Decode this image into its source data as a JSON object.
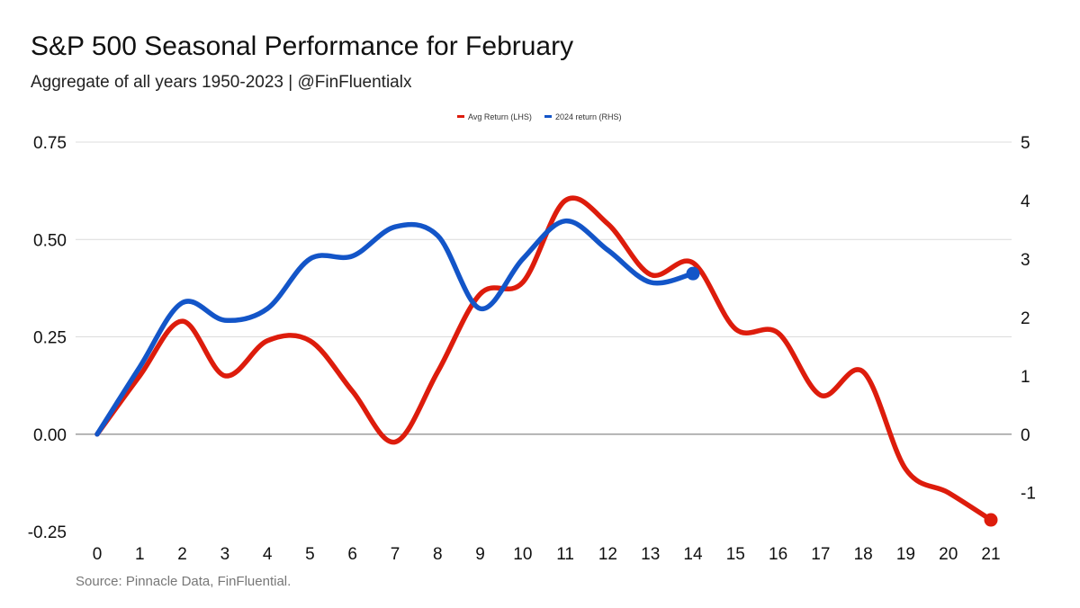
{
  "chart_data": {
    "type": "line",
    "title": "S&P 500 Seasonal Performance for February",
    "subtitle": "Aggregate of all years 1950-2023 | @FinFluentialx",
    "source": "Source: Pinnacle Data, FinFluential.",
    "x": [
      0,
      1,
      2,
      3,
      4,
      5,
      6,
      7,
      8,
      9,
      10,
      11,
      12,
      13,
      14,
      15,
      16,
      17,
      18,
      19,
      20,
      21
    ],
    "x_tick_labels": [
      "0",
      "1",
      "2",
      "3",
      "4",
      "5",
      "6",
      "7",
      "8",
      "9",
      "10",
      "11",
      "12",
      "13",
      "14",
      "15",
      "16",
      "17",
      "18",
      "19",
      "20",
      "21"
    ],
    "y_left": {
      "ylim": [
        -0.25,
        0.75
      ],
      "ticks": [
        -0.25,
        0,
        0.25,
        0.5,
        0.75
      ],
      "tick_labels": [
        "-0.25",
        "0.00",
        "0.25",
        "0.50",
        "0.75"
      ]
    },
    "y_right": {
      "ylim": [
        -1.5,
        5
      ],
      "ticks": [
        -1,
        0,
        1,
        2,
        3,
        4,
        5
      ],
      "tick_labels": [
        "-1",
        "0",
        "1",
        "2",
        "3",
        "4",
        "5"
      ]
    },
    "legend_position": "top-center",
    "series": [
      {
        "name": "Avg Return (LHS)",
        "axis": "left",
        "color": "#dd1c0c",
        "x": [
          0,
          1,
          2,
          3,
          4,
          5,
          6,
          7,
          8,
          9,
          10,
          11,
          12,
          13,
          14,
          15,
          16,
          17,
          18,
          19,
          20,
          21
        ],
        "values": [
          0.0,
          0.15,
          0.29,
          0.15,
          0.24,
          0.24,
          0.11,
          -0.02,
          0.16,
          0.36,
          0.39,
          0.6,
          0.54,
          0.41,
          0.44,
          0.27,
          0.26,
          0.1,
          0.16,
          -0.09,
          -0.15,
          -0.22
        ],
        "end_marker": true
      },
      {
        "name": "2024 return (RHS)",
        "axis": "right",
        "color": "#1355c8",
        "x": [
          0,
          1,
          2,
          3,
          4,
          5,
          6,
          7,
          8,
          9,
          10,
          11,
          12,
          13,
          14
        ],
        "values": [
          0.0,
          1.15,
          2.25,
          1.95,
          2.15,
          3.0,
          3.05,
          3.55,
          3.4,
          2.15,
          3.0,
          3.65,
          3.15,
          2.6,
          2.75
        ],
        "end_marker": true
      }
    ]
  }
}
